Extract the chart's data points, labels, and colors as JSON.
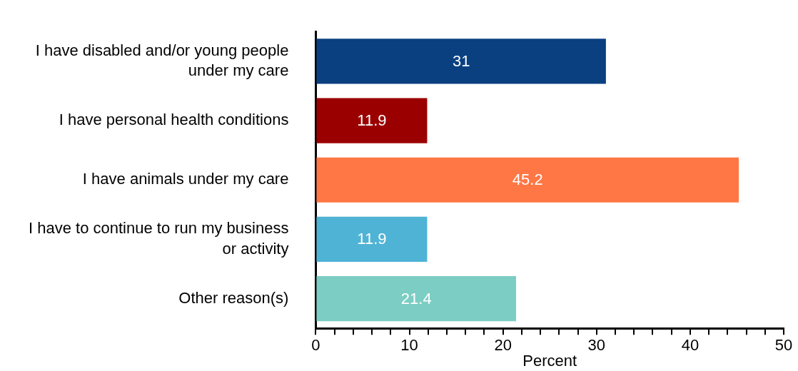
{
  "chart_data": {
    "type": "bar",
    "orientation": "horizontal",
    "xlabel": "Percent",
    "categories": [
      "I have disabled and/or young people under my care",
      "I have personal health conditions",
      "I have animals under my care",
      "I have to continue to run my business or activity",
      "Other reason(s)"
    ],
    "values": [
      31,
      11.9,
      45.2,
      11.9,
      21.4
    ],
    "colors": [
      "#0a4080",
      "#9b0000",
      "#ff7744",
      "#4fb3d5",
      "#7ccdc4"
    ],
    "xlim": [
      0,
      50
    ],
    "xticks": [
      0,
      {
        "value": 2,
        "label": null
      },
      {
        "value": 4,
        "label": null
      },
      {
        "value": 6,
        "label": null
      },
      {
        "value": 8,
        "label": null
      },
      10,
      {
        "value": 12,
        "label": null
      },
      {
        "value": 14,
        "label": null
      },
      {
        "value": 16,
        "label": null
      },
      {
        "value": 18,
        "label": null
      },
      20,
      {
        "value": 22,
        "label": null
      },
      {
        "value": 24,
        "label": null
      },
      {
        "value": 26,
        "label": null
      },
      {
        "value": 28,
        "label": null
      },
      30,
      {
        "value": 32,
        "label": null
      },
      {
        "value": 34,
        "label": null
      },
      {
        "value": 36,
        "label": null
      },
      {
        "value": 38,
        "label": null
      },
      40,
      {
        "value": 42,
        "label": null
      },
      {
        "value": 44,
        "label": null
      },
      {
        "value": 46,
        "label": null
      },
      {
        "value": 48,
        "label": null
      },
      50
    ],
    "grid": false,
    "legend": false,
    "data_labels": true
  }
}
